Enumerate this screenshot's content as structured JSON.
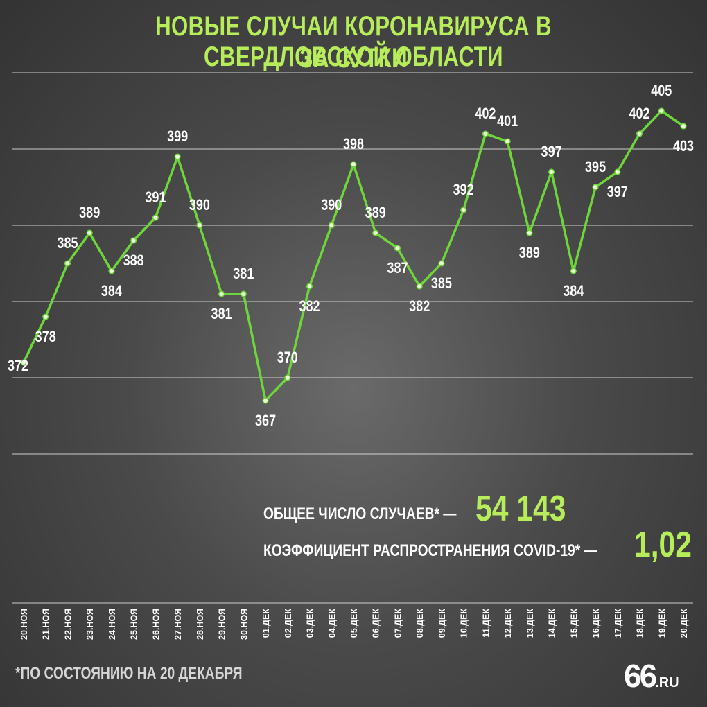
{
  "title_line1": "НОВЫЕ СЛУЧАИ КОРОНАВИРУСА В СВЕРДЛОВСКОЙ ОБЛАСТИ",
  "title_line2": "ЗА СУТКИ",
  "colors": {
    "accent": "#b7ec5b",
    "line": "#6ed63a",
    "grid": "#e6e6e6",
    "text": "#ffffff"
  },
  "stats": {
    "total_label": "ОБЩЕЕ ЧИСЛО СЛУЧАЕВ* —",
    "total_value": "54 143",
    "coef_label": "КОЭФФИЦИЕНТ РАСПРОСТРАНЕНИЯ COVID-19* —",
    "coef_value": "1,02"
  },
  "footnote": "*ПО СОСТОЯНИЮ НА 20 ДЕКАБРЯ",
  "logo": {
    "main": "66",
    "suffix": ".RU"
  },
  "chart_data": {
    "type": "line",
    "title": "НОВЫЕ СЛУЧАИ КОРОНАВИРУСА В СВЕРДЛОВСКОЙ ОБЛАСТИ ЗА СУТКИ",
    "categories": [
      "20.НОЯ",
      "21.НОЯ",
      "22.НОЯ",
      "23.НОЯ",
      "24.НОЯ",
      "25.НОЯ",
      "26.НОЯ",
      "27.НОЯ",
      "28.НОЯ",
      "29.НОЯ",
      "30.НОЯ",
      "01.ДЕК",
      "02.ДЕК",
      "03.ДЕК",
      "04.ДЕК",
      "05.ДЕК",
      "06.ДЕК",
      "07.ДЕК",
      "08.ДЕК",
      "09.ДЕК",
      "10.ДЕК",
      "11.ДЕК",
      "12.ДЕК",
      "13.ДЕК",
      "14.ДЕК",
      "15.ДЕК",
      "16.ДЕК",
      "17.ДЕК",
      "18.ДЕК",
      "19.ДЕК",
      "20.ДЕК"
    ],
    "values": [
      372,
      378,
      385,
      389,
      384,
      388,
      391,
      399,
      390,
      381,
      381,
      367,
      370,
      382,
      390,
      398,
      389,
      387,
      382,
      385,
      392,
      402,
      401,
      389,
      397,
      384,
      395,
      397,
      402,
      405,
      403
    ],
    "ylim": [
      360,
      410
    ],
    "grid": true,
    "legend": "none"
  }
}
